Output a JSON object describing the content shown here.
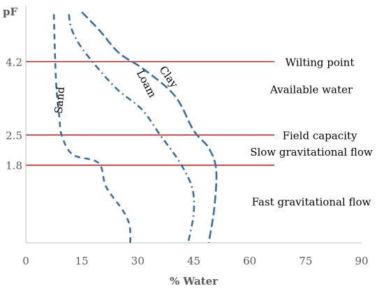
{
  "chart_data": {
    "type": "line",
    "xlabel": "% Water",
    "ylabel": "pF",
    "xlim": [
      0,
      90
    ],
    "x_ticks": [
      0,
      15,
      30,
      45,
      60,
      75,
      90
    ],
    "xtick_labels": [
      "0",
      "15",
      "30",
      "45",
      "60",
      "75",
      "90"
    ],
    "ylim": [
      0,
      5.5
    ],
    "y_ticks": [
      1.8,
      2.5,
      4.2
    ],
    "ytick_labels": [
      "1.8",
      "2.5",
      "4.2"
    ],
    "grid": false,
    "legend": "none",
    "reference_lines": [
      {
        "pF": 4.2,
        "label": "Wilting point",
        "color": "#a52a2a"
      },
      {
        "pF": 2.5,
        "label": "Field capacity",
        "color": "#a52a2a"
      },
      {
        "pF": 1.8,
        "label": "",
        "color": "#a52a2a"
      }
    ],
    "region_labels": [
      {
        "text": "Available water",
        "pF": 3.55
      },
      {
        "text": "Slow gravitational flow",
        "pF": 2.1
      },
      {
        "text": "Fast gravitational flow",
        "pF": 0.95
      }
    ],
    "series": [
      {
        "name": "Sand",
        "style": "dashed",
        "color": "#3b6e9c",
        "points": [
          [
            7.5,
            5.3
          ],
          [
            7.8,
            4.4
          ],
          [
            8.2,
            3.6
          ],
          [
            9.0,
            2.9
          ],
          [
            9.6,
            2.5
          ],
          [
            12.5,
            2.05
          ],
          [
            19.5,
            1.85
          ],
          [
            21.5,
            1.3
          ],
          [
            26.0,
            0.75
          ],
          [
            27.8,
            0.4
          ],
          [
            28.0,
            0.0
          ]
        ]
      },
      {
        "name": "Loam",
        "style": "dashdot",
        "color": "#3b6e9c",
        "points": [
          [
            11.5,
            5.3
          ],
          [
            12.5,
            4.9
          ],
          [
            16.0,
            4.4
          ],
          [
            24.0,
            3.6
          ],
          [
            31.0,
            3.1
          ],
          [
            36.0,
            2.5
          ],
          [
            41.0,
            1.9
          ],
          [
            44.5,
            1.3
          ],
          [
            45.0,
            0.7
          ],
          [
            43.5,
            0.0
          ]
        ]
      },
      {
        "name": "Clay",
        "style": "longdash",
        "color": "#3b6e9c",
        "points": [
          [
            15.0,
            5.35
          ],
          [
            20.0,
            4.9
          ],
          [
            25.0,
            4.4
          ],
          [
            32.0,
            4.0
          ],
          [
            40.0,
            3.4
          ],
          [
            45.0,
            2.6
          ],
          [
            49.0,
            2.2
          ],
          [
            51.0,
            1.7
          ],
          [
            50.5,
            0.8
          ],
          [
            49.0,
            0.0
          ]
        ]
      }
    ],
    "curve_labels": [
      {
        "text": "Sand",
        "x": 10.0,
        "pF": 3.3,
        "rotation": -85
      },
      {
        "text": "Loam",
        "x": 31.5,
        "pF": 3.65,
        "rotation": 62
      },
      {
        "text": "Clay",
        "x": 37.5,
        "pF": 3.8,
        "rotation": 55
      }
    ]
  }
}
